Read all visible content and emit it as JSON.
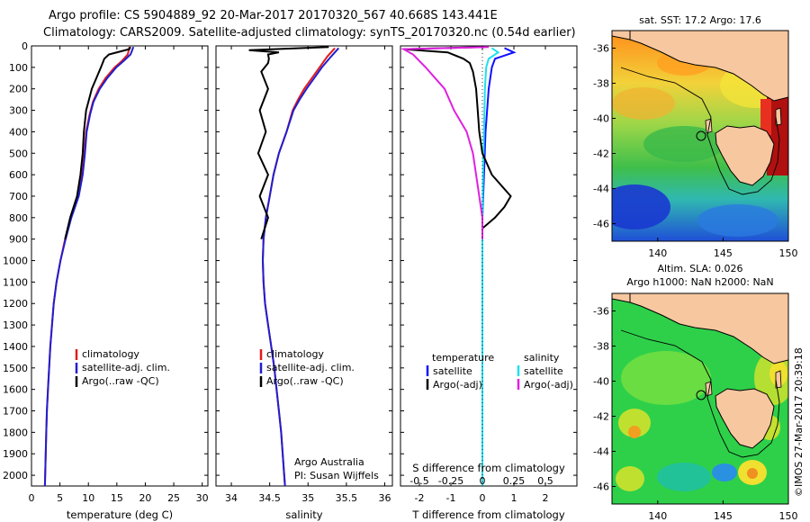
{
  "header": {
    "line1": "Argo profile: CS 5904889_92 20-Mar-2017 20170320_567 40.668S 143.441E",
    "line2": "Climatology: CARS2009. Satellite-adjusted climatology: synTS_20170320.nc (0.54d earlier)"
  },
  "depth_ticks": [
    "0",
    "100",
    "200",
    "300",
    "400",
    "500",
    "600",
    "700",
    "800",
    "900",
    "1000",
    "1100",
    "1200",
    "1300",
    "1400",
    "1500",
    "1600",
    "1700",
    "1800",
    "1900",
    "2000"
  ],
  "colors": {
    "climatology": "#e31a1c",
    "satellite": "#1f1fd0",
    "argo": "#000000",
    "sat_t": "#1010ff",
    "sat_s": "#1ee0ee",
    "argo_s": "#e020e0",
    "land": "#f7c7a0"
  },
  "chart_data": [
    {
      "type": "line",
      "name_panel": "temperature",
      "xlabel": "temperature (deg C)",
      "xlim": [
        0,
        31
      ],
      "ylim": [
        0,
        2050
      ],
      "x_ticks": [
        "0",
        "5",
        "10",
        "15",
        "20",
        "25",
        "30"
      ],
      "y_inverted": true,
      "legend_items": [
        "climatology",
        "satellite-adj. clim.",
        "Argo(..raw -QC)"
      ],
      "series": [
        {
          "name": "climatology",
          "points": [
            [
              17.2,
              5
            ],
            [
              17.1,
              20
            ],
            [
              16.9,
              40
            ],
            [
              15.9,
              70
            ],
            [
              14.6,
              100
            ],
            [
              13.0,
              150
            ],
            [
              11.8,
              200
            ],
            [
              10.8,
              260
            ],
            [
              10.2,
              320
            ],
            [
              9.6,
              400
            ],
            [
              9.3,
              500
            ],
            [
              8.9,
              600
            ],
            [
              8.2,
              700
            ],
            [
              6.9,
              800
            ],
            [
              5.9,
              900
            ],
            [
              5.1,
              1000
            ],
            [
              4.4,
              1100
            ],
            [
              3.9,
              1200
            ],
            [
              3.6,
              1300
            ],
            [
              3.3,
              1400
            ],
            [
              3.1,
              1500
            ],
            [
              2.9,
              1600
            ],
            [
              2.7,
              1700
            ],
            [
              2.6,
              1800
            ],
            [
              2.5,
              1900
            ],
            [
              2.4,
              2000
            ],
            [
              2.35,
              2050
            ]
          ]
        },
        {
          "name": "satellite-adj. clim.",
          "points": [
            [
              17.9,
              5
            ],
            [
              17.7,
              20
            ],
            [
              17.4,
              40
            ],
            [
              16.2,
              70
            ],
            [
              14.9,
              100
            ],
            [
              13.3,
              150
            ],
            [
              12.0,
              200
            ],
            [
              10.9,
              260
            ],
            [
              10.3,
              320
            ],
            [
              9.7,
              400
            ],
            [
              9.4,
              500
            ],
            [
              9.0,
              600
            ],
            [
              8.3,
              700
            ],
            [
              7.0,
              800
            ],
            [
              6.0,
              900
            ],
            [
              5.1,
              1000
            ],
            [
              4.4,
              1100
            ],
            [
              3.9,
              1200
            ],
            [
              3.6,
              1300
            ],
            [
              3.3,
              1400
            ],
            [
              3.1,
              1500
            ],
            [
              2.9,
              1600
            ],
            [
              2.7,
              1700
            ],
            [
              2.6,
              1800
            ],
            [
              2.5,
              1900
            ],
            [
              2.4,
              2000
            ],
            [
              2.35,
              2050
            ]
          ]
        },
        {
          "name": "Argo(..raw -QC)",
          "points": [
            [
              17.4,
              5
            ],
            [
              17.2,
              15
            ],
            [
              13.6,
              40
            ],
            [
              12.8,
              60
            ],
            [
              12.5,
              80
            ],
            [
              12.2,
              100
            ],
            [
              11.4,
              150
            ],
            [
              10.6,
              200
            ],
            [
              10.1,
              250
            ],
            [
              9.6,
              300
            ],
            [
              9.2,
              400
            ],
            [
              9.0,
              500
            ],
            [
              8.6,
              600
            ],
            [
              8.0,
              700
            ],
            [
              6.8,
              800
            ],
            [
              5.9,
              900
            ]
          ]
        }
      ]
    },
    {
      "type": "line",
      "name_panel": "salinity",
      "xlabel": "salinity",
      "xlim": [
        33.8,
        36.1
      ],
      "ylim": [
        0,
        2050
      ],
      "x_ticks": [
        "34",
        "34.5",
        "35",
        "35.5",
        "36"
      ],
      "y_inverted": true,
      "legend_items": [
        "climatology",
        "satellite-adj. clim.",
        "Argo(..raw -QC)"
      ],
      "credit1": "Argo Australia",
      "credit2": "PI: Susan Wijffels",
      "series": [
        {
          "name": "climatology",
          "points": [
            [
              35.35,
              10
            ],
            [
              35.25,
              50
            ],
            [
              35.15,
              100
            ],
            [
              35.05,
              150
            ],
            [
              34.95,
              200
            ],
            [
              34.87,
              250
            ],
            [
              34.8,
              300
            ],
            [
              34.72,
              400
            ],
            [
              34.62,
              500
            ],
            [
              34.55,
              600
            ],
            [
              34.5,
              700
            ],
            [
              34.45,
              800
            ],
            [
              34.42,
              900
            ],
            [
              34.41,
              1000
            ],
            [
              34.42,
              1100
            ],
            [
              34.44,
              1200
            ],
            [
              34.48,
              1300
            ],
            [
              34.52,
              1400
            ],
            [
              34.56,
              1500
            ],
            [
              34.59,
              1600
            ],
            [
              34.62,
              1700
            ],
            [
              34.65,
              1800
            ],
            [
              34.67,
              1900
            ],
            [
              34.69,
              2000
            ],
            [
              34.7,
              2050
            ]
          ]
        },
        {
          "name": "satellite-adj. clim.",
          "points": [
            [
              35.4,
              10
            ],
            [
              35.3,
              50
            ],
            [
              35.18,
              100
            ],
            [
              35.08,
              150
            ],
            [
              34.98,
              200
            ],
            [
              34.89,
              250
            ],
            [
              34.81,
              300
            ],
            [
              34.72,
              400
            ],
            [
              34.62,
              500
            ],
            [
              34.55,
              600
            ],
            [
              34.5,
              700
            ],
            [
              34.45,
              800
            ],
            [
              34.42,
              900
            ],
            [
              34.41,
              1000
            ],
            [
              34.42,
              1100
            ],
            [
              34.44,
              1200
            ],
            [
              34.48,
              1300
            ],
            [
              34.52,
              1400
            ],
            [
              34.56,
              1500
            ],
            [
              34.59,
              1600
            ],
            [
              34.62,
              1700
            ],
            [
              34.65,
              1800
            ],
            [
              34.67,
              1900
            ],
            [
              34.69,
              2000
            ],
            [
              34.7,
              2050
            ]
          ]
        },
        {
          "name": "Argo(..raw -QC)",
          "points": [
            [
              35.3,
              5
            ],
            [
              34.2,
              20
            ],
            [
              34.65,
              30
            ],
            [
              34.45,
              40
            ],
            [
              34.52,
              60
            ],
            [
              34.45,
              80
            ],
            [
              34.42,
              120
            ],
            [
              34.45,
              200
            ],
            [
              34.4,
              300
            ],
            [
              34.42,
              400
            ],
            [
              34.38,
              500
            ],
            [
              34.45,
              600
            ],
            [
              34.4,
              700
            ],
            [
              34.45,
              800
            ],
            [
              34.42,
              900
            ]
          ]
        }
      ]
    },
    {
      "type": "line",
      "name_panel": "differences",
      "xlabel": "T difference from climatology",
      "xlabel_top": "S difference from climatology",
      "xlim": [
        -2.6,
        3.0
      ],
      "ylim": [
        0,
        2050
      ],
      "x_ticks_t": [
        "-2",
        "-1",
        "0",
        "1",
        "2"
      ],
      "x_ticks_s": [
        "-0.5",
        "-0.25",
        "0",
        "0.25",
        "0.5"
      ],
      "y_inverted": true,
      "legend": {
        "temperature": "temperature",
        "salinity": "salinity",
        "satellite": "satellite",
        "argo": "Argo(-adj)"
      },
      "series": [
        {
          "name": "temperature satellite",
          "points": [
            [
              0.7,
              10
            ],
            [
              1.0,
              30
            ],
            [
              0.4,
              60
            ],
            [
              0.3,
              100
            ],
            [
              0.2,
              200
            ],
            [
              0.1,
              400
            ],
            [
              0.05,
              600
            ],
            [
              0,
              800
            ],
            [
              0,
              2050
            ]
          ]
        },
        {
          "name": "salinity satellite",
          "points": [
            [
              0.3,
              10
            ],
            [
              0.5,
              30
            ],
            [
              0.2,
              60
            ],
            [
              0.12,
              100
            ],
            [
              0.08,
              200
            ],
            [
              0.05,
              400
            ],
            [
              0.02,
              600
            ],
            [
              0,
              800
            ],
            [
              0,
              2050
            ]
          ]
        },
        {
          "name": "temperature Argo(-adj)",
          "points": [
            [
              0.1,
              5
            ],
            [
              -2.5,
              15
            ],
            [
              -1.1,
              30
            ],
            [
              -0.6,
              60
            ],
            [
              -0.4,
              80
            ],
            [
              -0.3,
              120
            ],
            [
              -0.2,
              200
            ],
            [
              -0.15,
              300
            ],
            [
              -0.1,
              400
            ],
            [
              0.0,
              500
            ],
            [
              0.3,
              600
            ],
            [
              0.9,
              700
            ],
            [
              0.7,
              750
            ],
            [
              0.4,
              800
            ],
            [
              0.0,
              850
            ],
            [
              0.0,
              900
            ]
          ]
        },
        {
          "name": "salinity Argo(-adj)",
          "points": [
            [
              0.2,
              5
            ],
            [
              -2.5,
              15
            ],
            [
              -2.2,
              40
            ],
            [
              -1.8,
              100
            ],
            [
              -1.5,
              150
            ],
            [
              -1.2,
              200
            ],
            [
              -0.9,
              300
            ],
            [
              -0.5,
              400
            ],
            [
              -0.3,
              500
            ],
            [
              -0.2,
              600
            ],
            [
              -0.1,
              700
            ],
            [
              0.0,
              800
            ],
            [
              0.0,
              900
            ]
          ]
        }
      ]
    },
    {
      "type": "heatmap",
      "name_panel": "sst-map",
      "title": "sat. SST: 17.2  Argo: 17.6",
      "x_ticks": [
        "140",
        "145",
        "150"
      ],
      "y_ticks": [
        "-36",
        "-38",
        "-40",
        "-42",
        "-44",
        "-46"
      ],
      "xlim": [
        136.5,
        150
      ],
      "ylim": [
        -47,
        -35
      ],
      "argo_position": [
        143.441,
        -40.668
      ]
    },
    {
      "type": "heatmap",
      "name_panel": "sla-map",
      "title": "Altim. SLA: 0.026",
      "title2": "Argo h1000: NaN  h2000: NaN",
      "x_ticks": [
        "140",
        "145",
        "150"
      ],
      "y_ticks": [
        "-36",
        "-38",
        "-40",
        "-42",
        "-44",
        "-46"
      ],
      "xlim": [
        136.5,
        150
      ],
      "ylim": [
        -47,
        -35
      ],
      "argo_position": [
        143.441,
        -40.668
      ]
    }
  ],
  "footer": {
    "credit": "©IMOS 27-Mar-2017 20:39:18"
  }
}
